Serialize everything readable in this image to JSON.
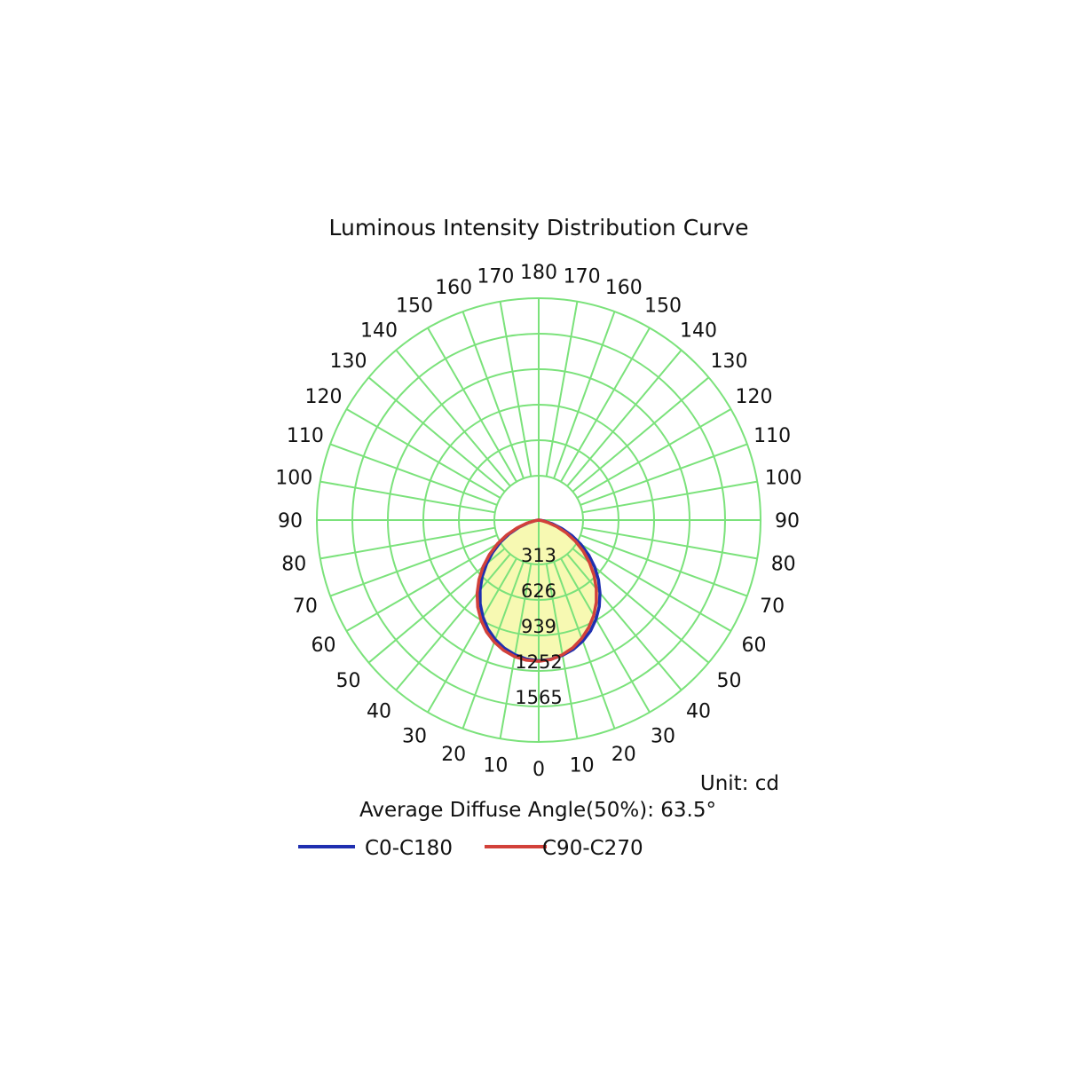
{
  "chart_data": {
    "type": "polar",
    "title": "Luminous Intensity Distribution Curve",
    "unit_label": "Unit: cd",
    "average_angle_label": "Average Diffuse Angle(50%): 63.5°",
    "angle_range": [
      0,
      180
    ],
    "angle_ticks": [
      0,
      10,
      20,
      30,
      40,
      50,
      60,
      70,
      80,
      90,
      100,
      110,
      120,
      130,
      140,
      150,
      160,
      170,
      180
    ],
    "radial_ticks": [
      "313",
      "626",
      "939",
      "1252",
      "1565"
    ],
    "radial_max": 1565,
    "grid": true,
    "colors": {
      "grid": "#7be27b",
      "fill": "#f7f9b2",
      "c0": "#1f2fb0",
      "c90": "#d2413a"
    },
    "series": [
      {
        "name": "C0-C180",
        "color": "#1f2fb0",
        "angles": [
          0,
          5,
          10,
          15,
          20,
          25,
          30,
          35,
          40,
          45,
          50,
          55,
          60,
          65,
          70,
          75,
          80,
          85,
          90
        ],
        "left": [
          1240,
          1230,
          1205,
          1170,
          1120,
          1060,
          985,
          900,
          805,
          705,
          600,
          495,
          390,
          285,
          185,
          95,
          35,
          8,
          0
        ],
        "right": [
          1240,
          1232,
          1210,
          1180,
          1135,
          1080,
          1010,
          930,
          840,
          745,
          645,
          540,
          430,
          320,
          215,
          120,
          50,
          12,
          0
        ]
      },
      {
        "name": "C90-C270",
        "color": "#d2413a",
        "angles": [
          0,
          5,
          10,
          15,
          20,
          25,
          30,
          35,
          40,
          45,
          50,
          55,
          60,
          65,
          70,
          75,
          80,
          85,
          90
        ],
        "left": [
          1245,
          1240,
          1222,
          1190,
          1145,
          1088,
          1018,
          937,
          845,
          745,
          640,
          530,
          420,
          310,
          205,
          110,
          40,
          10,
          0
        ],
        "right": [
          1245,
          1235,
          1205,
          1165,
          1110,
          1045,
          970,
          885,
          790,
          690,
          585,
          480,
          375,
          270,
          170,
          85,
          30,
          7,
          0
        ]
      }
    ]
  }
}
